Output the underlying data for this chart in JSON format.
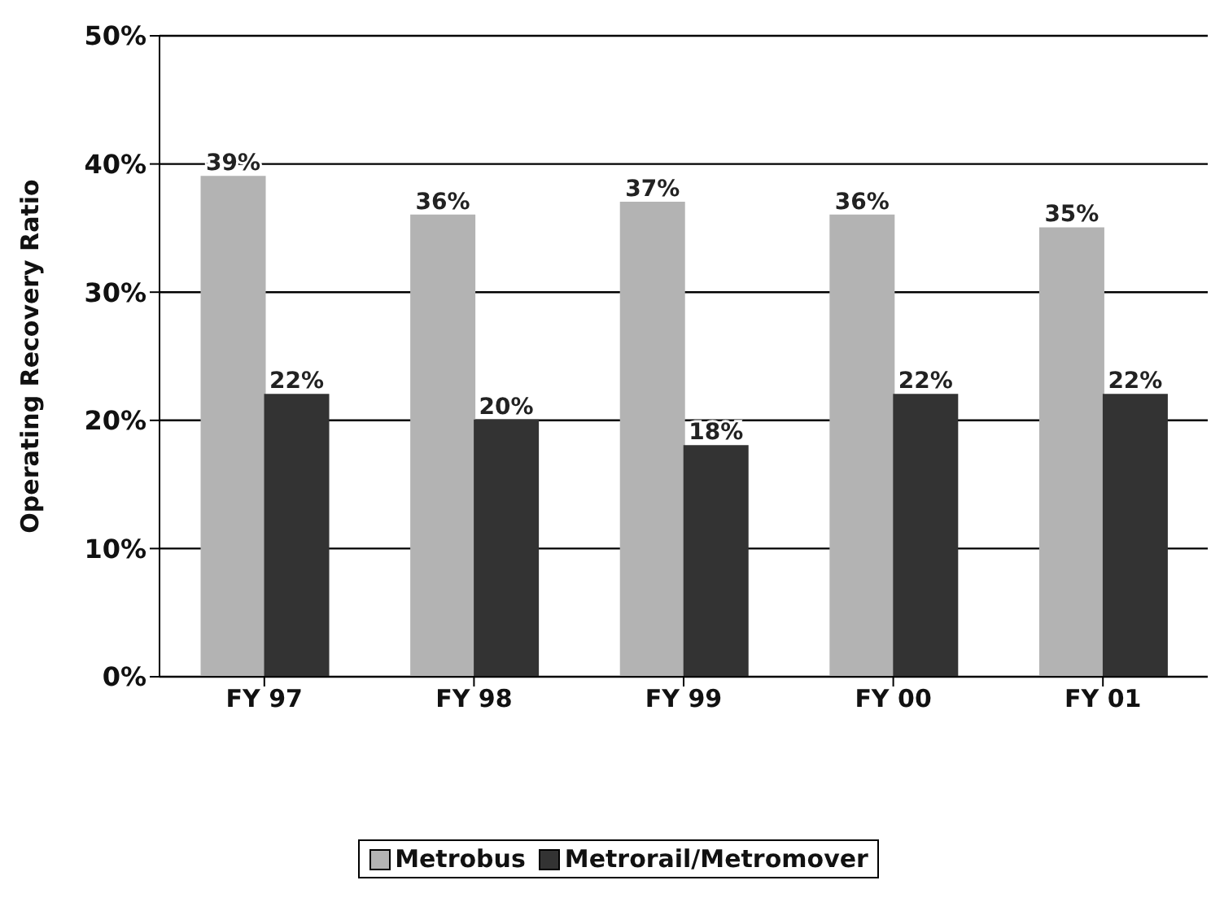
{
  "chart_data": {
    "type": "bar",
    "ylabel": "Operating Recovery Ratio",
    "categories": [
      "FY 97",
      "FY 98",
      "FY 99",
      "FY 00",
      "FY 01"
    ],
    "series": [
      {
        "name": "Metrobus",
        "color": "#b3b3b3",
        "values": [
          39,
          36,
          37,
          36,
          35
        ],
        "value_labels": [
          "39%",
          "36%",
          "37%",
          "36%",
          "35%"
        ]
      },
      {
        "name": "Metrorail/Metromover",
        "color": "#333333",
        "values": [
          22,
          20,
          18,
          22,
          22
        ],
        "value_labels": [
          "22%",
          "20%",
          "18%",
          "22%",
          "22%"
        ]
      }
    ],
    "ylim": [
      0,
      50
    ],
    "yticks": [
      {
        "value": 0,
        "label": "0%"
      },
      {
        "value": 10,
        "label": "10%"
      },
      {
        "value": 20,
        "label": "20%"
      },
      {
        "value": 30,
        "label": "30%"
      },
      {
        "value": 40,
        "label": "40%"
      },
      {
        "value": 50,
        "label": "50%"
      }
    ],
    "grid": "y",
    "legend": "bottom"
  }
}
